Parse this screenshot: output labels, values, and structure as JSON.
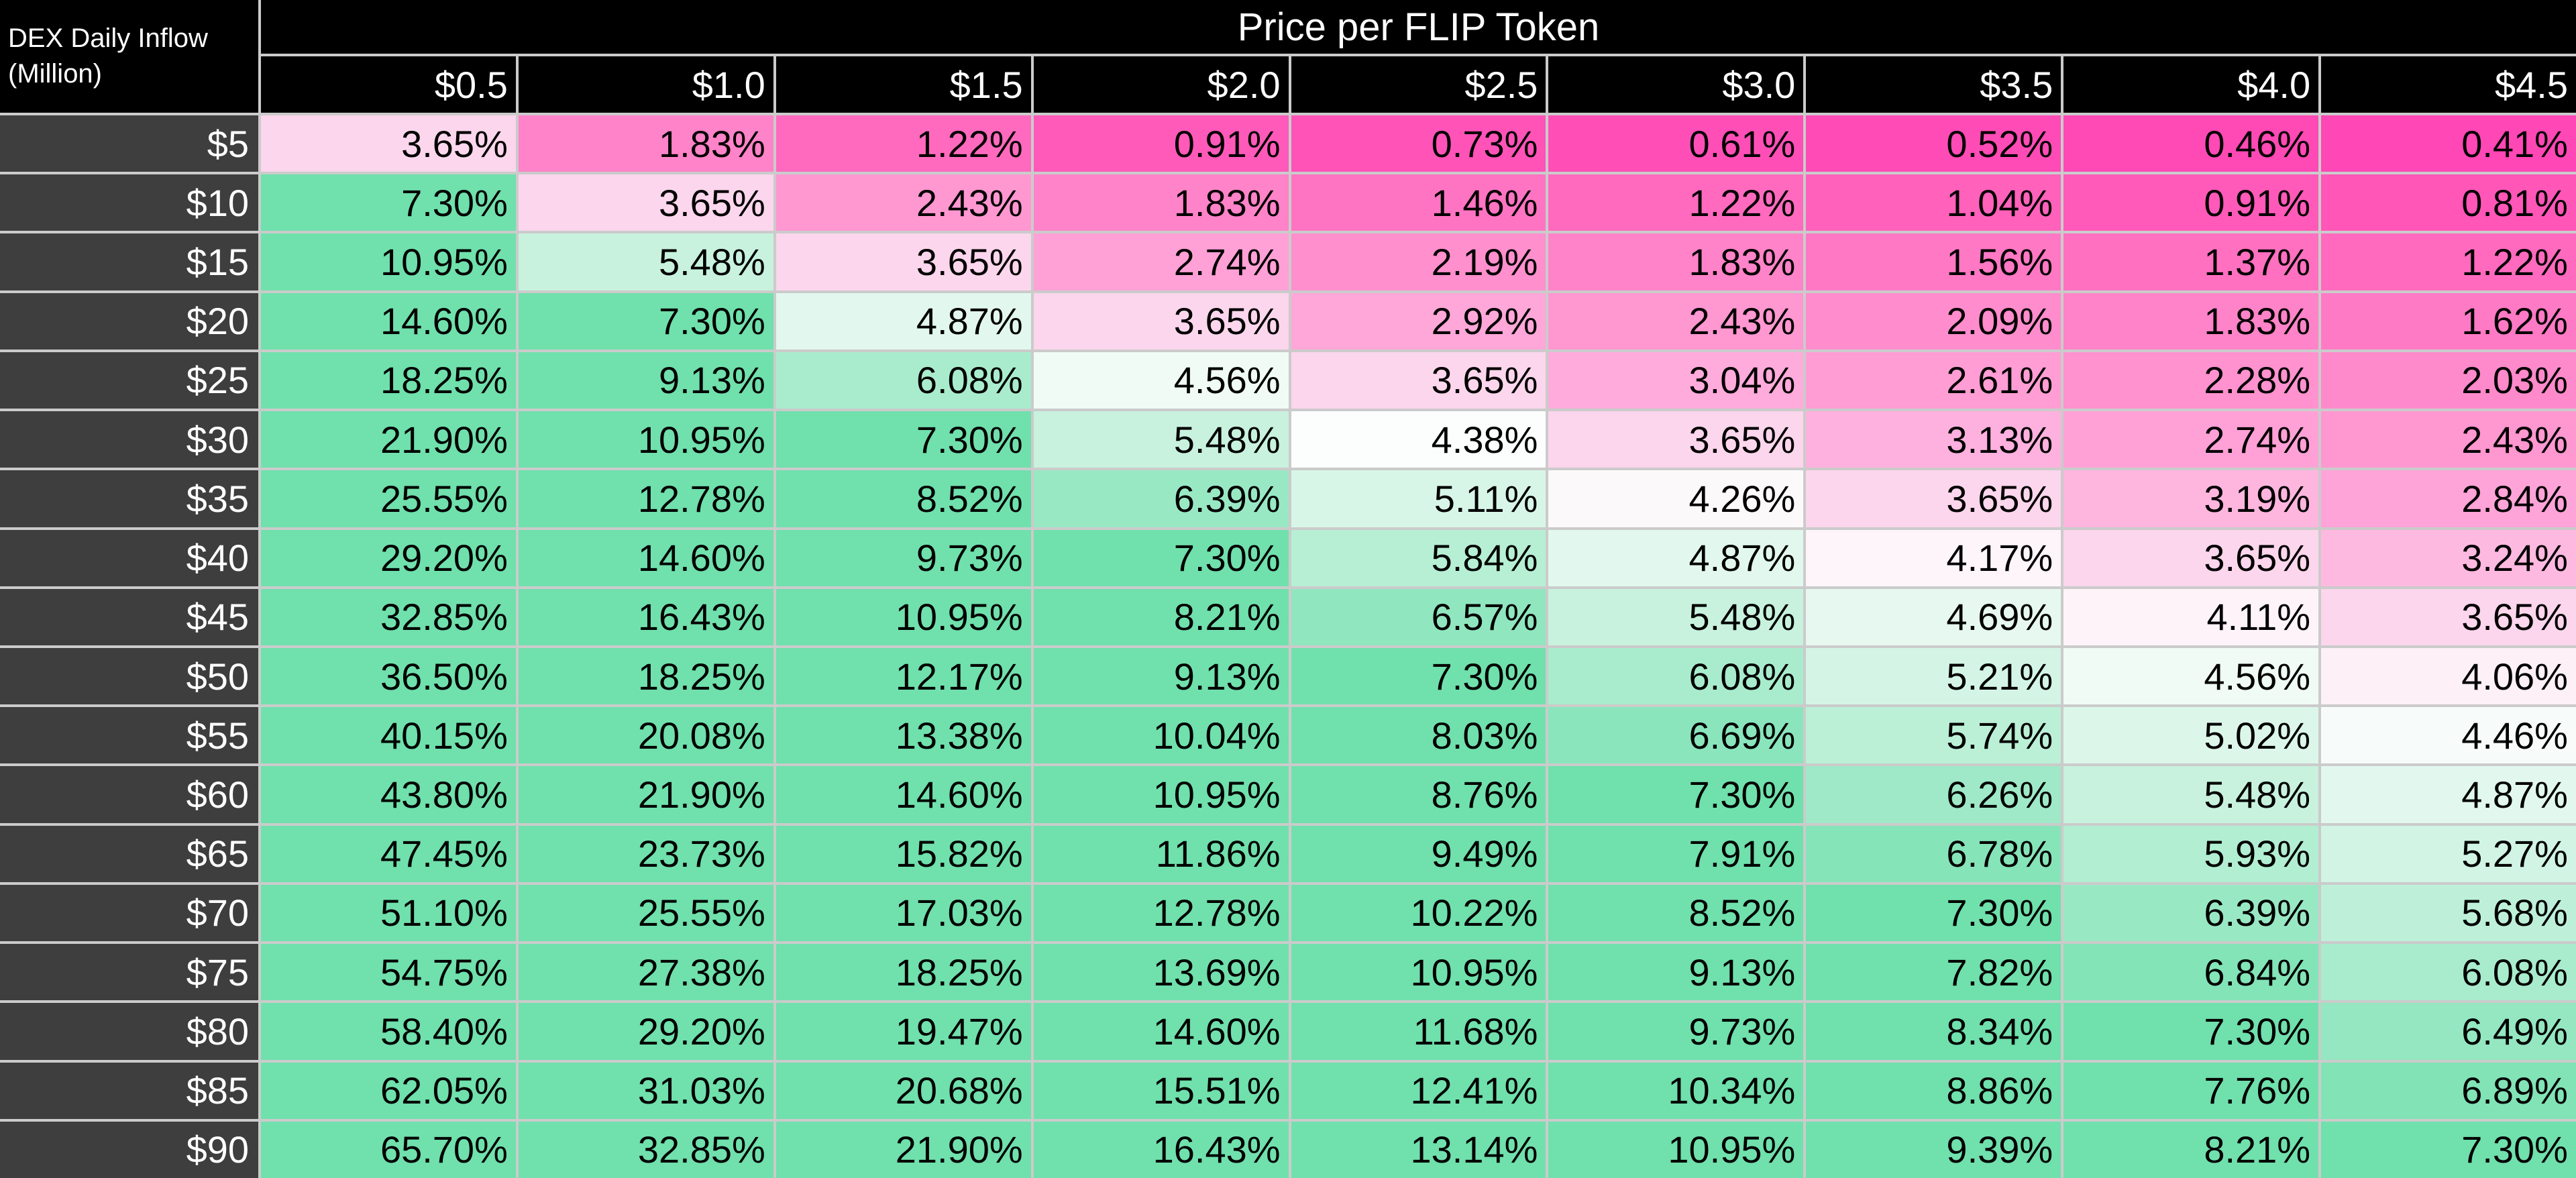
{
  "title": "Price per FLIP Token",
  "axis": {
    "row_label_line1": "DEX Daily Inflow",
    "row_label_line2": "(Million)"
  },
  "chart_data": {
    "type": "heatmap",
    "title": "Price per FLIP Token",
    "row_axis_label": "DEX Daily Inflow (Million)",
    "unit": "percent",
    "columns": [
      "$0.5",
      "$1.0",
      "$1.5",
      "$2.0",
      "$2.5",
      "$3.0",
      "$3.5",
      "$4.0",
      "$4.5"
    ],
    "rows": [
      "$5",
      "$10",
      "$15",
      "$20",
      "$25",
      "$30",
      "$35",
      "$40",
      "$45",
      "$50",
      "$55",
      "$60",
      "$65",
      "$70",
      "$75",
      "$80",
      "$85",
      "$90"
    ],
    "values": [
      [
        "3.65%",
        "1.83%",
        "1.22%",
        "0.91%",
        "0.73%",
        "0.61%",
        "0.52%",
        "0.46%",
        "0.41%"
      ],
      [
        "7.30%",
        "3.65%",
        "2.43%",
        "1.83%",
        "1.46%",
        "1.22%",
        "1.04%",
        "0.91%",
        "0.81%"
      ],
      [
        "10.95%",
        "5.48%",
        "3.65%",
        "2.74%",
        "2.19%",
        "1.83%",
        "1.56%",
        "1.37%",
        "1.22%"
      ],
      [
        "14.60%",
        "7.30%",
        "4.87%",
        "3.65%",
        "2.92%",
        "2.43%",
        "2.09%",
        "1.83%",
        "1.62%"
      ],
      [
        "18.25%",
        "9.13%",
        "6.08%",
        "4.56%",
        "3.65%",
        "3.04%",
        "2.61%",
        "2.28%",
        "2.03%"
      ],
      [
        "21.90%",
        "10.95%",
        "7.30%",
        "5.48%",
        "4.38%",
        "3.65%",
        "3.13%",
        "2.74%",
        "2.43%"
      ],
      [
        "25.55%",
        "12.78%",
        "8.52%",
        "6.39%",
        "5.11%",
        "4.26%",
        "3.65%",
        "3.19%",
        "2.84%"
      ],
      [
        "29.20%",
        "14.60%",
        "9.73%",
        "7.30%",
        "5.84%",
        "4.87%",
        "4.17%",
        "3.65%",
        "3.24%"
      ],
      [
        "32.85%",
        "16.43%",
        "10.95%",
        "8.21%",
        "6.57%",
        "5.48%",
        "4.69%",
        "4.11%",
        "3.65%"
      ],
      [
        "36.50%",
        "18.25%",
        "12.17%",
        "9.13%",
        "7.30%",
        "6.08%",
        "5.21%",
        "4.56%",
        "4.06%"
      ],
      [
        "40.15%",
        "20.08%",
        "13.38%",
        "10.04%",
        "8.03%",
        "6.69%",
        "5.74%",
        "5.02%",
        "4.46%"
      ],
      [
        "43.80%",
        "21.90%",
        "14.60%",
        "10.95%",
        "8.76%",
        "7.30%",
        "6.26%",
        "5.48%",
        "4.87%"
      ],
      [
        "47.45%",
        "23.73%",
        "15.82%",
        "11.86%",
        "9.49%",
        "7.91%",
        "6.78%",
        "5.93%",
        "5.27%"
      ],
      [
        "51.10%",
        "25.55%",
        "17.03%",
        "12.78%",
        "10.22%",
        "8.52%",
        "7.30%",
        "6.39%",
        "5.68%"
      ],
      [
        "54.75%",
        "27.38%",
        "18.25%",
        "13.69%",
        "10.95%",
        "9.13%",
        "7.82%",
        "6.84%",
        "6.08%"
      ],
      [
        "58.40%",
        "29.20%",
        "19.47%",
        "14.60%",
        "11.68%",
        "9.73%",
        "8.34%",
        "7.30%",
        "6.49%"
      ],
      [
        "62.05%",
        "31.03%",
        "20.68%",
        "15.51%",
        "12.41%",
        "10.34%",
        "8.86%",
        "7.76%",
        "6.89%"
      ],
      [
        "65.70%",
        "32.85%",
        "21.90%",
        "16.43%",
        "13.14%",
        "10.95%",
        "9.39%",
        "8.21%",
        "7.30%"
      ]
    ],
    "color_scale": {
      "low_color": "#FF47B5",
      "mid_color": "#FFFFFF",
      "high_color": "#70E0AC",
      "mid_value": 4.38,
      "saturation_value": 7.3,
      "stops": [
        [
          0.41,
          "#FF47B5"
        ],
        [
          0.91,
          "#FF5AB9"
        ],
        [
          1.22,
          "#FF6ABE"
        ],
        [
          1.83,
          "#FF83C8"
        ],
        [
          2.43,
          "#FF97D1"
        ],
        [
          3.04,
          "#FFABDB"
        ],
        [
          3.65,
          "#FBD6EC"
        ],
        [
          4.11,
          "#FDF3F8"
        ],
        [
          4.38,
          "#FCFEFD"
        ],
        [
          4.69,
          "#E7F8F0"
        ],
        [
          4.87,
          "#E2F8EE"
        ],
        [
          5.48,
          "#C8F2DE"
        ],
        [
          5.93,
          "#B2EED2"
        ],
        [
          6.26,
          "#9FE9C8"
        ],
        [
          6.78,
          "#86E4B9"
        ],
        [
          7.3,
          "#70E0AC"
        ]
      ]
    }
  },
  "styles": {
    "grid_line_color": "#CBCBCB",
    "header_bg": "#000000",
    "row_header_bg": "#3E3E3E",
    "header_text_color": "#FFFFFF",
    "cell_text_color": "#000000"
  }
}
